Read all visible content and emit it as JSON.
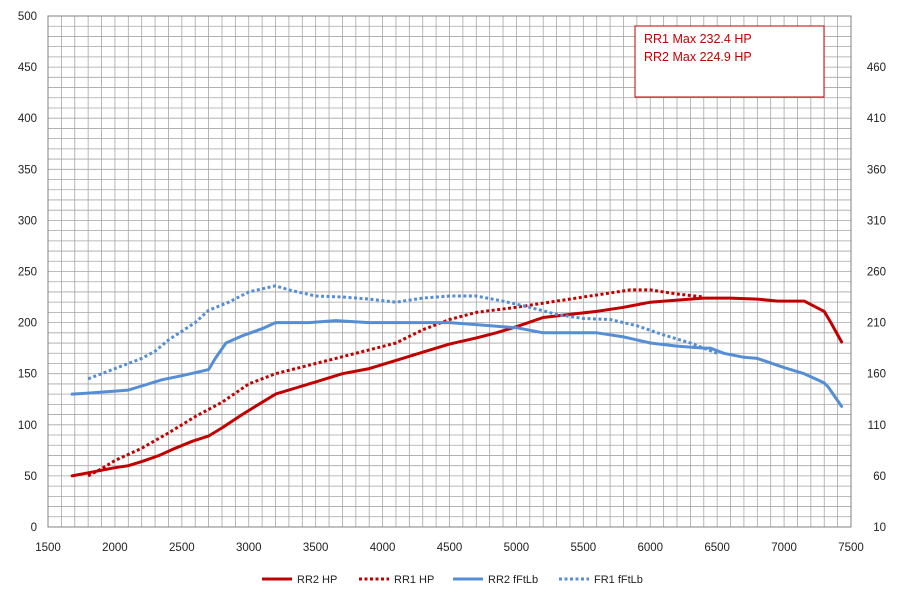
{
  "chart_data": {
    "type": "line",
    "title": "",
    "xlabel": "",
    "ylabel": "",
    "x_ticks": [
      1500,
      2000,
      2500,
      3000,
      3500,
      4000,
      4500,
      5000,
      5500,
      6000,
      6500,
      7000,
      7500
    ],
    "xlim": [
      1500,
      7500
    ],
    "ylim_left": [
      0,
      500
    ],
    "y_ticks_left": [
      0,
      50,
      100,
      150,
      200,
      250,
      300,
      350,
      400,
      450,
      500
    ],
    "ylim_right": [
      10,
      510
    ],
    "y_ticks_right": [
      10,
      60,
      110,
      160,
      210,
      260,
      310,
      360,
      410,
      460
    ],
    "grid": true,
    "legend_position": "bottom",
    "annotations": [
      "RR1 Max 232.4  HP",
      "RR2 Max 224.9  HP"
    ],
    "colors": {
      "red": "#c00000",
      "blue": "#558ed5",
      "grid": "#a6a6a6",
      "annotation_border": "#c00000"
    },
    "series": [
      {
        "name": "RR2 HP",
        "axis": "left",
        "style": "solid",
        "color": "#c00000",
        "x": [
          1680,
          1800,
          2000,
          2100,
          2200,
          2330,
          2450,
          2580,
          2700,
          2800,
          2950,
          3100,
          3200,
          3350,
          3500,
          3700,
          3900,
          4100,
          4300,
          4500,
          4700,
          4850,
          5000,
          5200,
          5400,
          5600,
          5800,
          6000,
          6200,
          6400,
          6600,
          6800,
          6950,
          7150,
          7300,
          7350,
          7430
        ],
        "y": [
          50,
          53,
          58,
          60,
          64,
          70,
          77,
          84,
          89,
          97,
          110,
          122,
          130,
          136,
          142,
          150,
          155,
          163,
          171,
          179,
          185,
          190,
          196,
          205,
          208,
          211,
          215,
          220,
          222,
          224,
          224,
          223,
          221,
          221,
          211,
          200,
          181
        ]
      },
      {
        "name": "RR1 HP",
        "axis": "left",
        "style": "dotted",
        "color": "#c00000",
        "x": [
          1800,
          1900,
          2000,
          2200,
          2400,
          2600,
          2800,
          3000,
          3200,
          3500,
          3800,
          4100,
          4300,
          4500,
          4700,
          5000,
          5300,
          5600,
          5850,
          6000,
          6200,
          6400
        ],
        "y": [
          50,
          57,
          65,
          77,
          92,
          108,
          122,
          140,
          150,
          160,
          170,
          180,
          193,
          203,
          210,
          215,
          221,
          227,
          232,
          232,
          228,
          225
        ]
      },
      {
        "name": "RR2 fFtLb",
        "axis": "right",
        "style": "solid",
        "color": "#558ed5",
        "x": [
          1680,
          1800,
          2000,
          2100,
          2200,
          2350,
          2500,
          2600,
          2700,
          2750,
          2830,
          2950,
          3100,
          3200,
          3450,
          3650,
          3900,
          4100,
          4300,
          4500,
          4700,
          4900,
          5000,
          5200,
          5400,
          5600,
          5800,
          6000,
          6200,
          6400,
          6450,
          6550,
          6700,
          6800,
          7000,
          7150,
          7300,
          7330,
          7430
        ],
        "y": [
          140,
          141,
          143,
          144,
          148,
          154,
          158,
          161,
          164,
          175,
          190,
          197,
          204,
          210,
          210,
          212,
          210,
          210,
          210,
          210,
          208,
          206,
          205,
          200,
          200,
          200,
          196,
          190,
          187,
          185,
          185,
          180,
          176,
          175,
          166,
          160,
          151,
          147,
          128
        ]
      },
      {
        "name": "FR1 fFtLb",
        "axis": "right",
        "style": "dotted",
        "color": "#558ed5",
        "x": [
          1800,
          2000,
          2200,
          2300,
          2400,
          2600,
          2700,
          2850,
          3000,
          3200,
          3300,
          3500,
          3700,
          3900,
          4100,
          4300,
          4500,
          4700,
          4900,
          5100,
          5300,
          5500,
          5700,
          5900,
          6100,
          6300,
          6500
        ],
        "y": [
          155,
          165,
          175,
          182,
          193,
          210,
          222,
          230,
          240,
          246,
          242,
          236,
          235,
          233,
          230,
          234,
          236,
          236,
          231,
          225,
          218,
          214,
          213,
          207,
          198,
          190,
          180
        ]
      }
    ]
  }
}
